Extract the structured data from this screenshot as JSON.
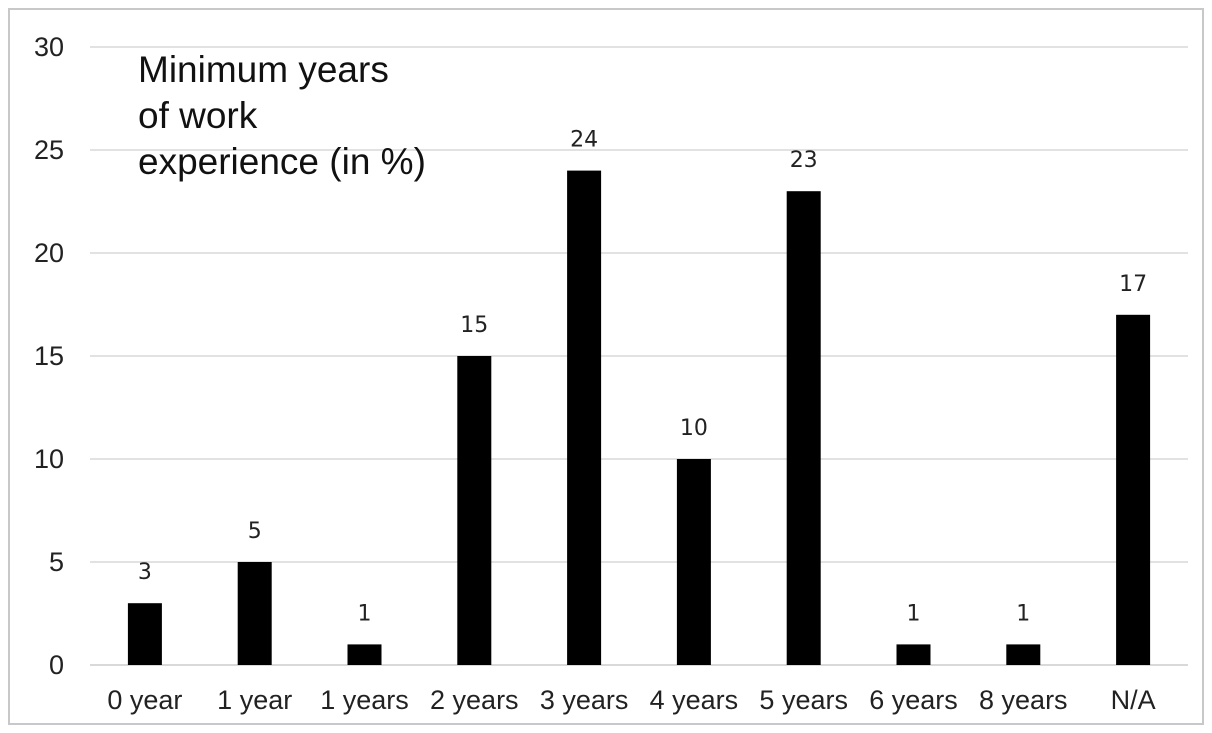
{
  "chart_data": {
    "type": "bar",
    "title_lines": [
      "Minimum years",
      "of work",
      "experience (in %)"
    ],
    "categories": [
      "0 year",
      "1 year",
      "1 years",
      "2 years",
      "3 years",
      "4 years",
      "5 years",
      "6 years",
      "8 years",
      "N/A"
    ],
    "values": [
      3,
      5,
      1,
      15,
      24,
      10,
      23,
      1,
      1,
      17
    ],
    "y_ticks": [
      "0",
      "5",
      "10",
      "15",
      "20",
      "25",
      "30"
    ],
    "ylim": [
      0,
      30
    ],
    "grid": true,
    "bar_color": "#000000",
    "grid_color": "#d9d9d9"
  }
}
